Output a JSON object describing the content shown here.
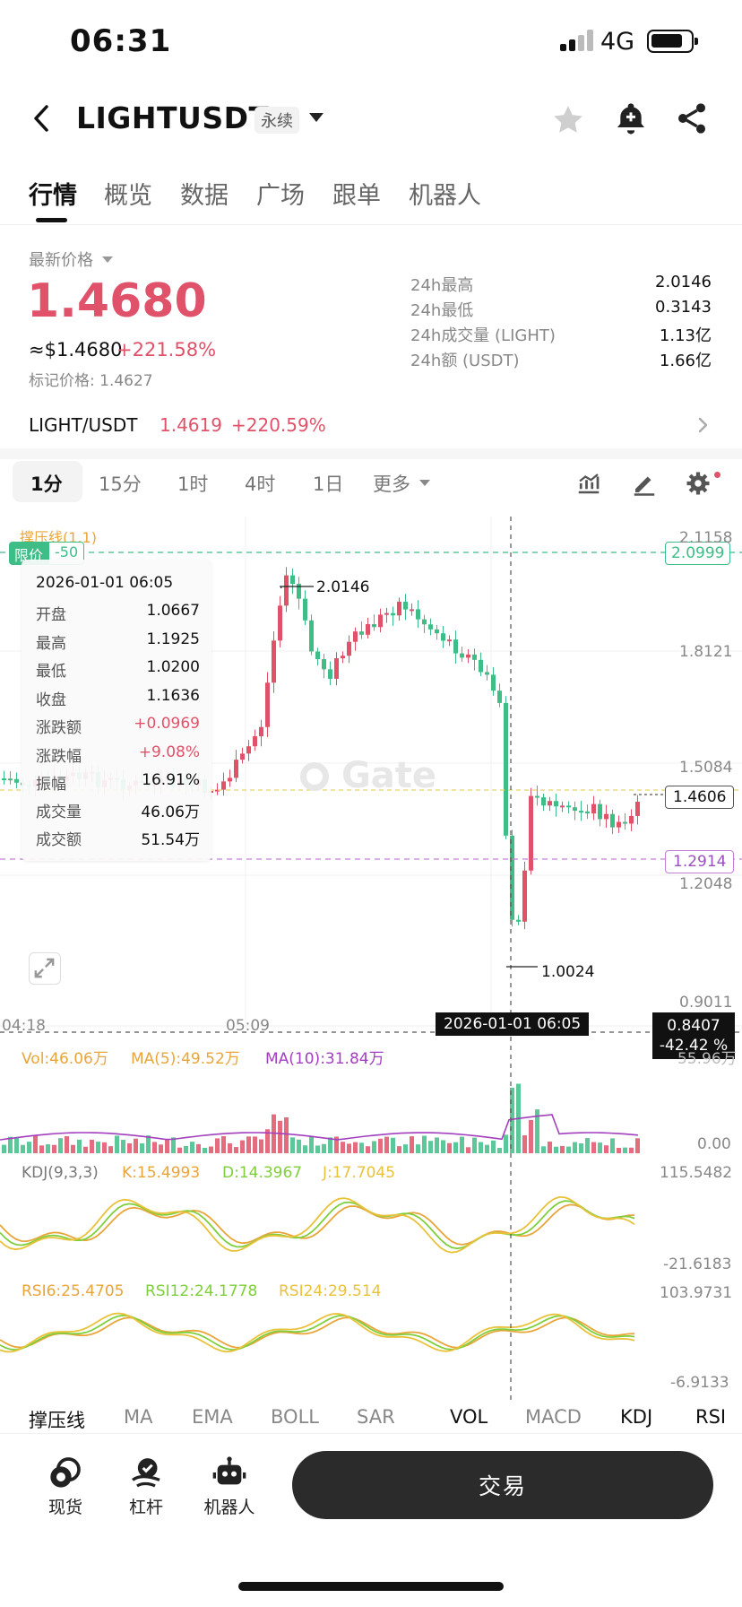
{
  "status": {
    "time": "06:31",
    "network": "4G"
  },
  "header": {
    "pair": "LIGHTUSDT",
    "badge": "永续"
  },
  "tabs": [
    {
      "label": "行情",
      "active": true
    },
    {
      "label": "概览"
    },
    {
      "label": "数据"
    },
    {
      "label": "广场"
    },
    {
      "label": "跟单"
    },
    {
      "label": "机器人"
    }
  ],
  "ticker": {
    "price_label": "最新价格",
    "last_price": "1.4680",
    "usd_price": "≈$1.4680",
    "change_pct": "+221.58%",
    "mark_price": "标记价格: 1.4627",
    "stats": [
      {
        "label": "24h最高",
        "value": "2.0146"
      },
      {
        "label": "24h最低",
        "value": "0.3143"
      },
      {
        "label": "24h成交量 (LIGHT)",
        "value": "1.13亿"
      },
      {
        "label": "24h额 (USDT)",
        "value": "1.66亿"
      }
    ]
  },
  "spot": {
    "pair": "LIGHT/USDT",
    "price": "1.4619",
    "change": "+220.59%"
  },
  "timeframes": [
    "1分",
    "15分",
    "1时",
    "4时",
    "1日",
    "更多"
  ],
  "chart": {
    "overlay_label": "撑压线(1,1)",
    "limit_tag": "限价",
    "limit_offset": "-50",
    "limit_price": "2.0999",
    "y_ticks": [
      "2.1158",
      "1.8121",
      "1.5084",
      "1.2048",
      "0.9011"
    ],
    "x_ticks": [
      "04:18",
      "05:09"
    ],
    "high_marker": "2.0146",
    "low_marker": "1.0024",
    "current_price": "1.4606",
    "line_price": "1.2914",
    "cursor_time": "2026-01-01 06:05",
    "cursor_price": "0.8407",
    "cursor_pct": "-42.42 %",
    "watermark": "Gate",
    "tooltip": {
      "time": "2026-01-01 06:05",
      "rows": [
        {
          "label": "开盘",
          "value": "1.0667"
        },
        {
          "label": "最高",
          "value": "1.1925"
        },
        {
          "label": "最低",
          "value": "1.0200"
        },
        {
          "label": "收盘",
          "value": "1.1636"
        },
        {
          "label": "涨跌额",
          "value": "+0.0969"
        },
        {
          "label": "涨跌幅",
          "value": "+9.08%"
        },
        {
          "label": "振幅",
          "value": "16.91%"
        },
        {
          "label": "成交量",
          "value": "46.06万"
        },
        {
          "label": "成交额",
          "value": "51.54万"
        }
      ]
    }
  },
  "volume": {
    "vol": "Vol:46.06万",
    "ma5": "MA(5):49.52万",
    "ma10": "MA(10):31.84万",
    "top": "55.96万",
    "bottom": "0.00"
  },
  "kdj": {
    "title": "KDJ(9,3,3)",
    "k": "K:15.4993",
    "d": "D:14.3967",
    "j": "J:17.7045",
    "top": "115.5482",
    "bottom": "-21.6183"
  },
  "rsi": {
    "r6": "RSI6:25.4705",
    "r12": "RSI12:24.1778",
    "r24": "RSI24:29.514",
    "top": "103.9731",
    "bottom": "-6.9133"
  },
  "indicator_tabs": [
    "撑压线",
    "MA",
    "EMA",
    "BOLL",
    "SAR",
    "VOL",
    "MACD",
    "KDJ",
    "RSI"
  ],
  "bottom_nav": {
    "spot": "现货",
    "margin": "杠杆",
    "bot": "机器人",
    "trade": "交易"
  },
  "colors": {
    "up": "#e05269",
    "down": "#3fbd87",
    "accent_price": "#e05269"
  }
}
